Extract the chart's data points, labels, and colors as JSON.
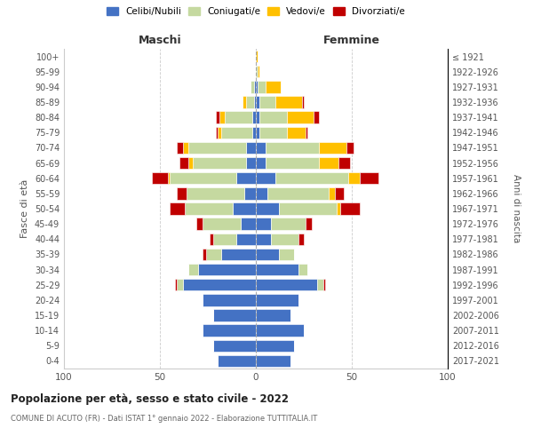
{
  "age_groups": [
    "0-4",
    "5-9",
    "10-14",
    "15-19",
    "20-24",
    "25-29",
    "30-34",
    "35-39",
    "40-44",
    "45-49",
    "50-54",
    "55-59",
    "60-64",
    "65-69",
    "70-74",
    "75-79",
    "80-84",
    "85-89",
    "90-94",
    "95-99",
    "100+"
  ],
  "birth_years": [
    "2017-2021",
    "2012-2016",
    "2007-2011",
    "2002-2006",
    "1997-2001",
    "1992-1996",
    "1987-1991",
    "1982-1986",
    "1977-1981",
    "1972-1976",
    "1967-1971",
    "1962-1966",
    "1957-1961",
    "1952-1956",
    "1947-1951",
    "1942-1946",
    "1937-1941",
    "1932-1936",
    "1927-1931",
    "1922-1926",
    "≤ 1921"
  ],
  "maschi": {
    "celibi": [
      20,
      22,
      28,
      22,
      28,
      38,
      30,
      18,
      10,
      8,
      12,
      6,
      10,
      5,
      5,
      2,
      2,
      1,
      1,
      0,
      0
    ],
    "coniugati": [
      0,
      0,
      0,
      0,
      0,
      3,
      5,
      8,
      12,
      20,
      25,
      30,
      35,
      28,
      30,
      16,
      14,
      4,
      2,
      0,
      0
    ],
    "vedovi": [
      0,
      0,
      0,
      0,
      0,
      0,
      0,
      0,
      0,
      0,
      0,
      0,
      1,
      2,
      3,
      2,
      3,
      2,
      0,
      0,
      0
    ],
    "divorziati": [
      0,
      0,
      0,
      0,
      0,
      1,
      0,
      2,
      2,
      3,
      8,
      5,
      8,
      5,
      3,
      1,
      2,
      0,
      0,
      0,
      0
    ]
  },
  "femmine": {
    "nubili": [
      18,
      20,
      25,
      18,
      22,
      32,
      22,
      12,
      8,
      8,
      12,
      6,
      10,
      5,
      5,
      2,
      2,
      2,
      1,
      0,
      0
    ],
    "coniugate": [
      0,
      0,
      0,
      0,
      0,
      3,
      5,
      8,
      14,
      18,
      30,
      32,
      38,
      28,
      28,
      14,
      14,
      8,
      4,
      1,
      0
    ],
    "vedove": [
      0,
      0,
      0,
      0,
      0,
      0,
      0,
      0,
      0,
      0,
      2,
      3,
      6,
      10,
      14,
      10,
      14,
      14,
      8,
      1,
      1
    ],
    "divorziate": [
      0,
      0,
      0,
      0,
      0,
      1,
      0,
      0,
      3,
      3,
      10,
      5,
      10,
      6,
      4,
      1,
      3,
      1,
      0,
      0,
      0
    ]
  },
  "colors": {
    "celibi_nubili": "#4472c4",
    "coniugati": "#c5d9a0",
    "vedovi": "#ffc000",
    "divorziati": "#c00000"
  },
  "title": "Popolazione per età, sesso e stato civile - 2022",
  "subtitle": "COMUNE DI ACUTO (FR) - Dati ISTAT 1° gennaio 2022 - Elaborazione TUTTITALIA.IT",
  "ylabel": "Fasce di età",
  "ylabel_right": "Anni di nascita",
  "label_maschi": "Maschi",
  "label_femmine": "Femmine",
  "legend_labels": [
    "Celibi/Nubili",
    "Coniugati/e",
    "Vedovi/e",
    "Divorziati/e"
  ]
}
